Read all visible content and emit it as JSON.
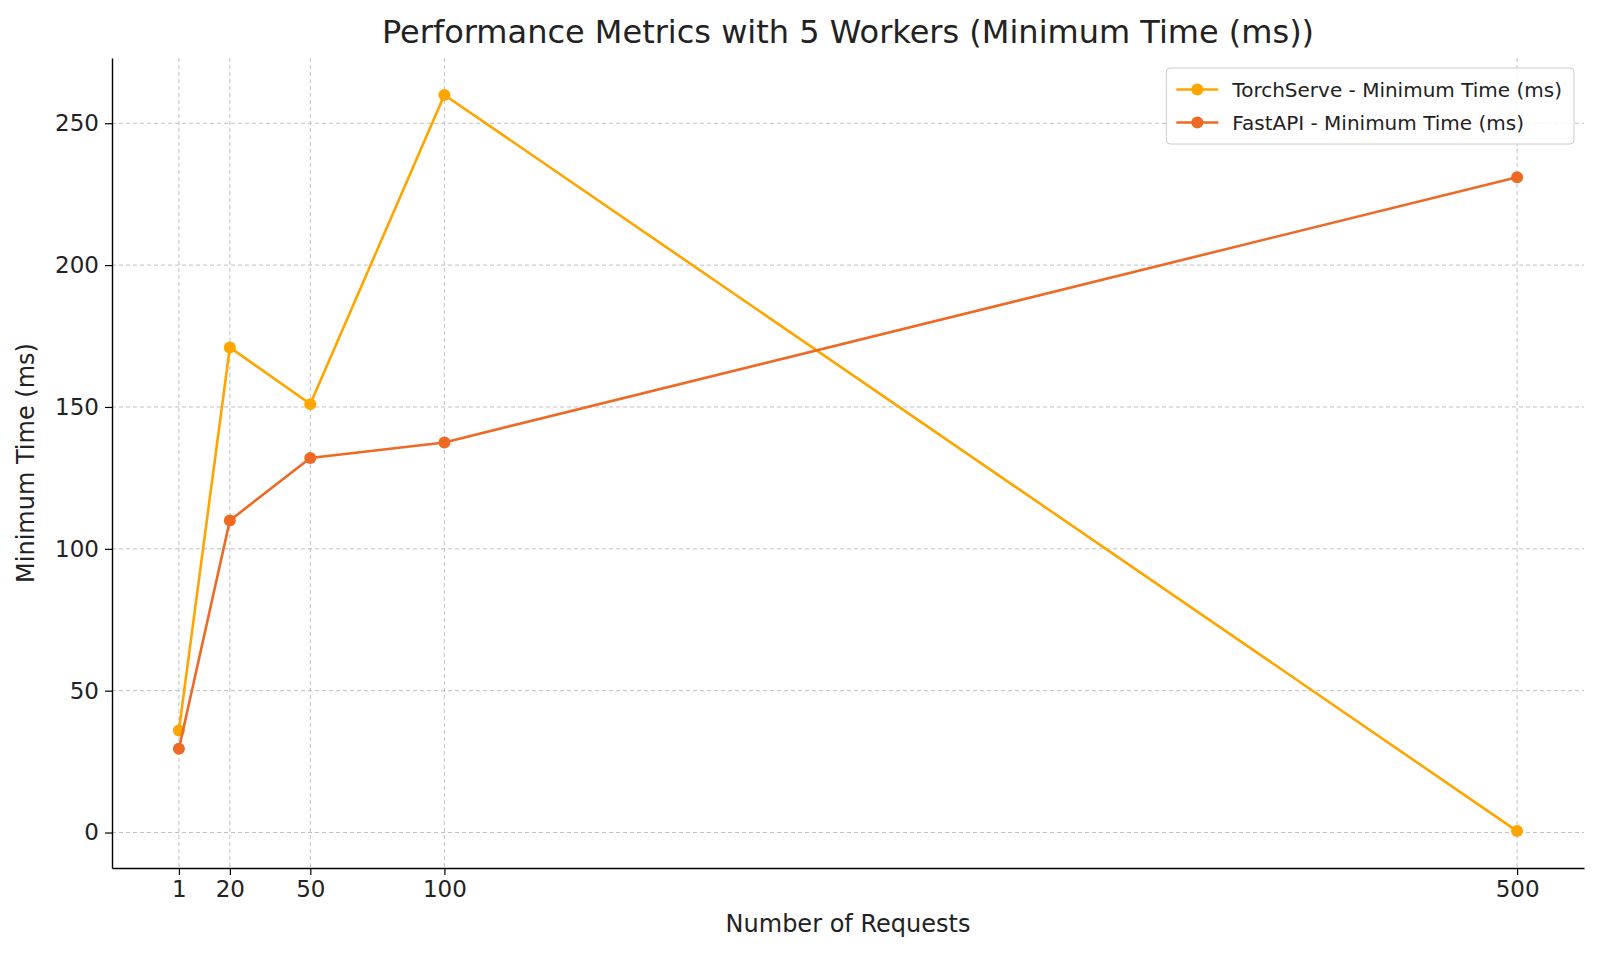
{
  "chart_data": {
    "type": "line",
    "title": "Performance Metrics with 5 Workers (Minimum Time (ms))",
    "x_label": "Number of Requests",
    "y_label": "Minimum Time (ms)",
    "x": [
      1,
      20,
      50,
      100,
      500
    ],
    "series": [
      {
        "name": "TorchServe - Minimum Time (ms)",
        "color": "#ffa500",
        "marker": "circle",
        "line_style": "solid",
        "values": [
          36,
          171,
          151,
          260,
          0.5
        ]
      },
      {
        "name": "FastAPI - Minimum Time (ms)",
        "color": "#ee6a24",
        "marker": "circle",
        "line_style": "solid",
        "values": [
          29.5,
          110,
          132,
          137.5,
          231
        ]
      }
    ],
    "xlim": [
      -23.95,
      524.95
    ],
    "xticks": [
      1,
      20,
      50,
      100,
      500
    ],
    "ylim": [
      -12.5,
      273
    ],
    "yticks": [
      0,
      50,
      100,
      150,
      200,
      250
    ],
    "grid": true,
    "legend": "upper right"
  }
}
